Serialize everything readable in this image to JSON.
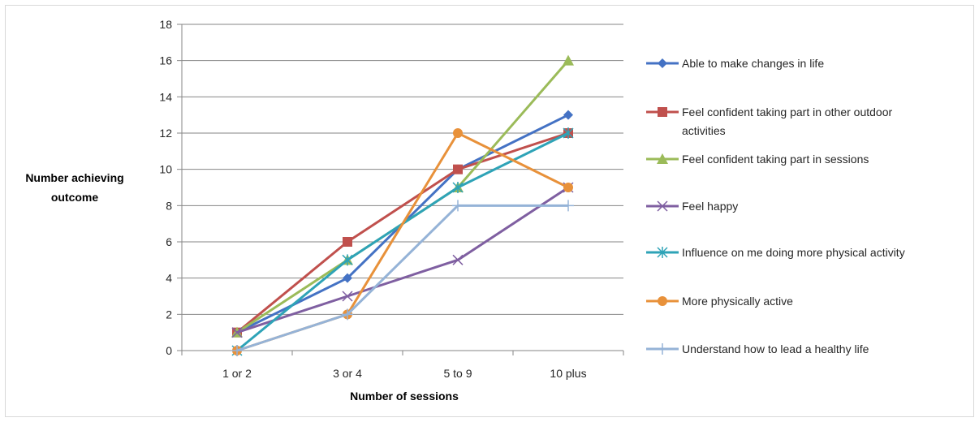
{
  "chart_data": {
    "type": "line",
    "categories": [
      "1 or 2",
      "3 or 4",
      "5 to 9",
      "10 plus"
    ],
    "ylabel": [
      "Number achieving",
      "outcome"
    ],
    "xlabel": "Number of sessions",
    "ylim": [
      0,
      18
    ],
    "yticks": [
      0,
      2,
      4,
      6,
      8,
      10,
      12,
      14,
      16,
      18
    ],
    "grid": true,
    "legend_position": "right",
    "series": [
      {
        "name": [
          "Able to make changes in life"
        ],
        "values": [
          1,
          4,
          10,
          13
        ],
        "color": "#4472c4",
        "marker": "diamond"
      },
      {
        "name": [
          "Feel confident taking part in other outdoor",
          "activities"
        ],
        "values": [
          1,
          6,
          10,
          12
        ],
        "color": "#c0504d",
        "marker": "square"
      },
      {
        "name": [
          "Feel confident taking part in sessions"
        ],
        "values": [
          1,
          5,
          9,
          16
        ],
        "color": "#9bbb59",
        "marker": "triangle"
      },
      {
        "name": [
          "Feel happy"
        ],
        "values": [
          1,
          3,
          5,
          9
        ],
        "color": "#7f5fa1",
        "marker": "x"
      },
      {
        "name": [
          "Influence on me doing more physical activity"
        ],
        "values": [
          0,
          5,
          9,
          12
        ],
        "color": "#2ea3b7",
        "marker": "asterisk"
      },
      {
        "name": [
          "More physically active"
        ],
        "values": [
          0,
          2,
          12,
          9
        ],
        "color": "#e8913a",
        "marker": "circle"
      },
      {
        "name": [
          "Understand how to lead a healthy life"
        ],
        "values": [
          0,
          2,
          8,
          8
        ],
        "color": "#95b3d7",
        "marker": "plus"
      }
    ]
  }
}
